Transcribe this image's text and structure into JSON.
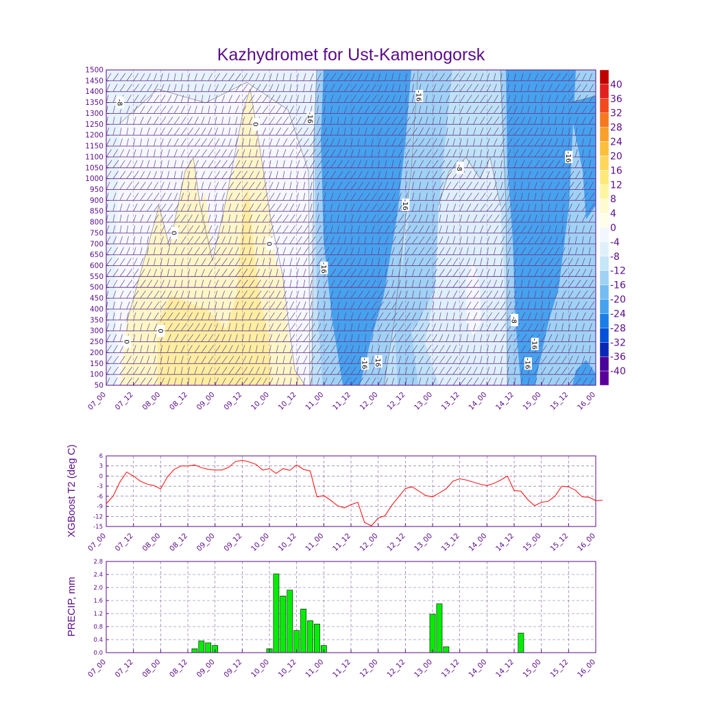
{
  "title": "Kazhydromet for Ust-Kamenogorsk",
  "x_tick_labels": [
    "07_00",
    "07_12",
    "08_00",
    "08_12",
    "09_00",
    "09_12",
    "10_00",
    "10_12",
    "11_00",
    "11_12",
    "12_00",
    "12_12",
    "13_00",
    "13_12",
    "14_00",
    "14_12",
    "15_00",
    "15_12",
    "16_00"
  ],
  "colors": {
    "axis": "#5a0a8a",
    "t2_line": "#ff0000",
    "precip_fill": "#00ee00",
    "wind_barb": "#6b3a8c",
    "contour_line": "#555555"
  },
  "chart_data": [
    {
      "type": "heatmap",
      "title": "Kazhydromet for Ust-Kamenogorsk",
      "xlabel": "",
      "ylabel": "",
      "x_ticks": [
        "07_00",
        "07_12",
        "08_00",
        "08_12",
        "09_00",
        "09_12",
        "10_00",
        "10_12",
        "11_00",
        "11_12",
        "12_00",
        "12_12",
        "13_00",
        "13_12",
        "14_00",
        "14_12",
        "15_00",
        "15_12",
        "16_00"
      ],
      "y_ticks": [
        50,
        100,
        150,
        200,
        250,
        300,
        350,
        400,
        450,
        500,
        550,
        600,
        650,
        700,
        750,
        800,
        850,
        900,
        950,
        1000,
        1050,
        1100,
        1150,
        1200,
        1250,
        1300,
        1350,
        1400,
        1450,
        1500
      ],
      "ylim": [
        50,
        1500
      ],
      "colorbar_levels": [
        40,
        36,
        32,
        28,
        24,
        20,
        16,
        12,
        8,
        4,
        0,
        -4,
        -8,
        -12,
        -16,
        -20,
        -24,
        -28,
        -32,
        -36,
        -40
      ],
      "colorbar_colors": [
        "#c00000",
        "#e21e1e",
        "#f24a1e",
        "#f5781e",
        "#f8a02a",
        "#fbbf3c",
        "#fdd65a",
        "#fde97a",
        "#fef5a0",
        "#fffbd0",
        "#fffee8",
        "#f2f6ff",
        "#dff0fb",
        "#c4e6f7",
        "#9fd2f4",
        "#74bdf2",
        "#45a2ee",
        "#1b7ee6",
        "#0550d8",
        "#0a28b8",
        "#4a009a",
        "#5a009a"
      ],
      "contour_labels": [
        {
          "text": "-8",
          "x": "07_06",
          "y": 1350
        },
        {
          "text": "-16",
          "x": "10_18",
          "y": 1280
        },
        {
          "text": "0",
          "x": "09_18",
          "y": 1250
        },
        {
          "text": "-16",
          "x": "12_18",
          "y": 1380
        },
        {
          "text": "-16",
          "x": "15_12",
          "y": 1100
        },
        {
          "text": "-8",
          "x": "13_12",
          "y": 1050
        },
        {
          "text": "-16",
          "x": "12_12",
          "y": 880
        },
        {
          "text": "0",
          "x": "08_06",
          "y": 750
        },
        {
          "text": "0",
          "x": "10_00",
          "y": 700
        },
        {
          "text": "-16",
          "x": "11_00",
          "y": 590
        },
        {
          "text": "-8",
          "x": "14_12",
          "y": 350
        },
        {
          "text": "-16",
          "x": "14_21",
          "y": 240
        },
        {
          "text": "0",
          "x": "08_00",
          "y": 300
        },
        {
          "text": "0",
          "x": "07_09",
          "y": 250
        },
        {
          "text": "-16",
          "x": "11_18",
          "y": 150
        },
        {
          "text": "-16",
          "x": "12_00",
          "y": 160
        },
        {
          "text": "-16",
          "x": "14_18",
          "y": 150
        }
      ]
    },
    {
      "type": "line",
      "title": "",
      "xlabel": "",
      "ylabel": "XGBoost T2 (deg C)",
      "y_ticks": [
        6,
        3,
        0,
        -3,
        -6,
        -9,
        -12,
        -15
      ],
      "ylim": [
        -15,
        6
      ],
      "x_ticks": [
        "07_00",
        "07_12",
        "08_00",
        "08_12",
        "09_00",
        "09_12",
        "10_00",
        "10_12",
        "11_00",
        "11_12",
        "12_00",
        "12_12",
        "13_00",
        "13_12",
        "14_00",
        "14_12",
        "15_00",
        "15_12",
        "16_00"
      ],
      "x_step_hours": 3,
      "values": [
        -8.2,
        -6.0,
        -1.8,
        1.2,
        0.0,
        -1.5,
        -2.4,
        -2.8,
        -3.8,
        -0.2,
        2.0,
        3.0,
        3.0,
        3.3,
        2.5,
        2.0,
        1.8,
        1.8,
        2.6,
        4.3,
        4.7,
        4.2,
        3.5,
        1.8,
        2.2,
        0.8,
        2.2,
        1.7,
        3.3,
        2.0,
        1.5,
        -6.2,
        -5.8,
        -7.2,
        -8.8,
        -9.5,
        -8.5,
        -7.8,
        -13.8,
        -14.8,
        -12.5,
        -11.8,
        -8.7,
        -6.2,
        -3.7,
        -3.2,
        -4.5,
        -5.8,
        -6.2,
        -5.0,
        -3.8,
        -1.5,
        -0.8,
        -1.2,
        -1.8,
        -2.4,
        -2.8,
        -2.2,
        -1.2,
        0.0,
        -4.3,
        -4.5,
        -7.0,
        -8.8,
        -7.8,
        -7.5,
        -6.0,
        -3.0,
        -3.2,
        -4.2,
        -6.2,
        -6.3,
        -7.3,
        -7.2
      ]
    },
    {
      "type": "bar",
      "title": "",
      "xlabel": "",
      "ylabel": "PRECIP, mm",
      "y_ticks": [
        "0.0",
        "0.4",
        "0.8",
        "1.2",
        "1.6",
        "2.0",
        "2.4",
        "2.8"
      ],
      "ylim": [
        0,
        2.8
      ],
      "x_ticks": [
        "07_00",
        "07_12",
        "08_00",
        "08_12",
        "09_00",
        "09_12",
        "10_00",
        "10_12",
        "11_00",
        "11_12",
        "12_00",
        "12_12",
        "13_00",
        "13_12",
        "14_00",
        "14_12",
        "15_00",
        "15_12",
        "16_00"
      ],
      "x_step_hours": 3,
      "values": [
        0,
        0,
        0,
        0,
        0,
        0,
        0,
        0,
        0,
        0,
        0,
        0,
        0,
        0.12,
        0.36,
        0.3,
        0.22,
        0,
        0,
        0,
        0,
        0,
        0,
        0,
        0.12,
        2.42,
        1.74,
        1.92,
        0.68,
        1.34,
        0.98,
        0.88,
        0.22,
        0,
        0,
        0,
        0,
        0,
        0,
        0,
        0,
        0,
        0,
        0,
        0,
        0,
        0,
        0,
        1.18,
        1.5,
        0.18,
        0,
        0,
        0,
        0,
        0,
        0,
        0,
        0,
        0,
        0,
        0.6,
        0,
        0,
        0,
        0,
        0,
        0,
        0,
        0,
        0,
        0,
        0
      ]
    }
  ]
}
